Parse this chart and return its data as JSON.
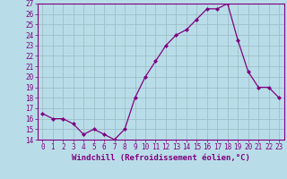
{
  "x": [
    0,
    1,
    2,
    3,
    4,
    5,
    6,
    7,
    8,
    9,
    10,
    11,
    12,
    13,
    14,
    15,
    16,
    17,
    18,
    19,
    20,
    21,
    22,
    23
  ],
  "y": [
    16.5,
    16.0,
    16.0,
    15.5,
    14.5,
    15.0,
    14.5,
    14.0,
    15.0,
    18.0,
    20.0,
    21.5,
    23.0,
    24.0,
    24.5,
    25.5,
    26.5,
    26.5,
    27.0,
    23.5,
    20.5,
    19.0,
    19.0,
    18.0
  ],
  "xlim": [
    -0.5,
    23.5
  ],
  "ylim": [
    14,
    27
  ],
  "yticks": [
    14,
    15,
    16,
    17,
    18,
    19,
    20,
    21,
    22,
    23,
    24,
    25,
    26,
    27
  ],
  "xticks": [
    0,
    1,
    2,
    3,
    4,
    5,
    6,
    7,
    8,
    9,
    10,
    11,
    12,
    13,
    14,
    15,
    16,
    17,
    18,
    19,
    20,
    21,
    22,
    23
  ],
  "xlabel": "Windchill (Refroidissement éolien,°C)",
  "line_color": "#800080",
  "marker": "D",
  "marker_size": 2,
  "bg_color": "#b8dde8",
  "grid_color": "#a0bfc8",
  "label_fontsize": 6.5,
  "tick_fontsize": 5.5
}
